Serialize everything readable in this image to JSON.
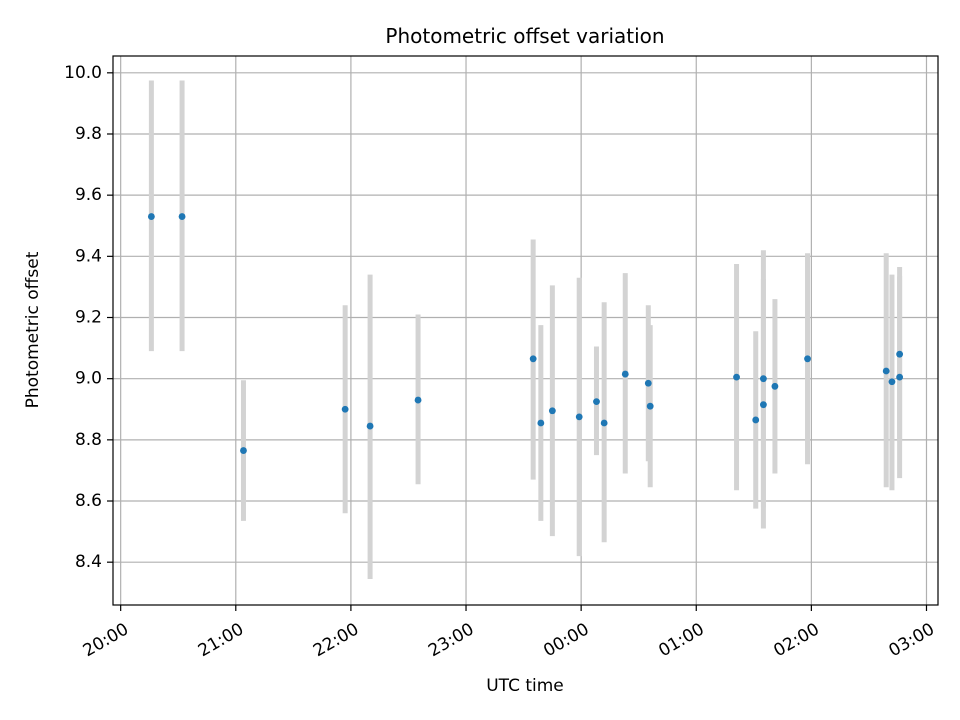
{
  "chart_data": {
    "type": "scatter",
    "title": "Photometric offset variation",
    "xlabel": "UTC time",
    "ylabel": "Photometric offset",
    "x_ticks": [
      "20:00",
      "21:00",
      "22:00",
      "23:00",
      "00:00",
      "01:00",
      "02:00",
      "03:00"
    ],
    "y_ticks": [
      "8.4",
      "8.6",
      "8.8",
      "9.0",
      "9.2",
      "9.4",
      "9.6",
      "9.8",
      "10.0"
    ],
    "xlim": [
      "19:56",
      "03:06"
    ],
    "ylim": [
      8.26,
      10.055
    ],
    "grid": true,
    "colors": {
      "point": "#1f77b4",
      "error_bar": "#d3d3d3",
      "grid": "#b0b0b0"
    },
    "points": [
      {
        "x": "20:16",
        "y": 9.53,
        "ylow": 9.09,
        "yhigh": 9.975
      },
      {
        "x": "20:32",
        "y": 9.53,
        "ylow": 9.09,
        "yhigh": 9.975
      },
      {
        "x": "21:04",
        "y": 8.765,
        "ylow": 8.535,
        "yhigh": 8.995
      },
      {
        "x": "21:57",
        "y": 8.9,
        "ylow": 8.56,
        "yhigh": 9.24
      },
      {
        "x": "22:10",
        "y": 8.845,
        "ylow": 8.345,
        "yhigh": 9.34
      },
      {
        "x": "22:35",
        "y": 8.93,
        "ylow": 8.655,
        "yhigh": 9.21
      },
      {
        "x": "23:35",
        "y": 9.065,
        "ylow": 8.67,
        "yhigh": 9.455
      },
      {
        "x": "23:39",
        "y": 8.855,
        "ylow": 8.535,
        "yhigh": 9.175
      },
      {
        "x": "23:45",
        "y": 8.895,
        "ylow": 8.485,
        "yhigh": 9.305
      },
      {
        "x": "23:59",
        "y": 8.875,
        "ylow": 8.42,
        "yhigh": 9.33
      },
      {
        "x": "00:08",
        "y": 8.925,
        "ylow": 8.75,
        "yhigh": 9.105
      },
      {
        "x": "00:12",
        "y": 8.855,
        "ylow": 8.465,
        "yhigh": 9.25
      },
      {
        "x": "00:23",
        "y": 9.015,
        "ylow": 8.69,
        "yhigh": 9.345
      },
      {
        "x": "00:35",
        "y": 8.985,
        "ylow": 8.73,
        "yhigh": 9.24
      },
      {
        "x": "00:36",
        "y": 8.91,
        "ylow": 8.645,
        "yhigh": 9.175
      },
      {
        "x": "01:21",
        "y": 9.005,
        "ylow": 8.635,
        "yhigh": 9.375
      },
      {
        "x": "01:31",
        "y": 8.865,
        "ylow": 8.575,
        "yhigh": 9.155
      },
      {
        "x": "01:35",
        "y": 8.915,
        "ylow": 8.51,
        "yhigh": 9.325
      },
      {
        "x": "01:35",
        "y": 9.0,
        "ylow": 8.58,
        "yhigh": 9.42
      },
      {
        "x": "01:41",
        "y": 8.975,
        "ylow": 8.69,
        "yhigh": 9.26
      },
      {
        "x": "01:58",
        "y": 9.065,
        "ylow": 8.72,
        "yhigh": 9.41
      },
      {
        "x": "02:39",
        "y": 9.025,
        "ylow": 8.645,
        "yhigh": 9.41
      },
      {
        "x": "02:42",
        "y": 8.99,
        "ylow": 8.635,
        "yhigh": 9.34
      },
      {
        "x": "02:46",
        "y": 9.08,
        "ylow": 8.795,
        "yhigh": 9.365
      },
      {
        "x": "02:46",
        "y": 9.005,
        "ylow": 8.675,
        "yhigh": 9.335
      }
    ]
  }
}
